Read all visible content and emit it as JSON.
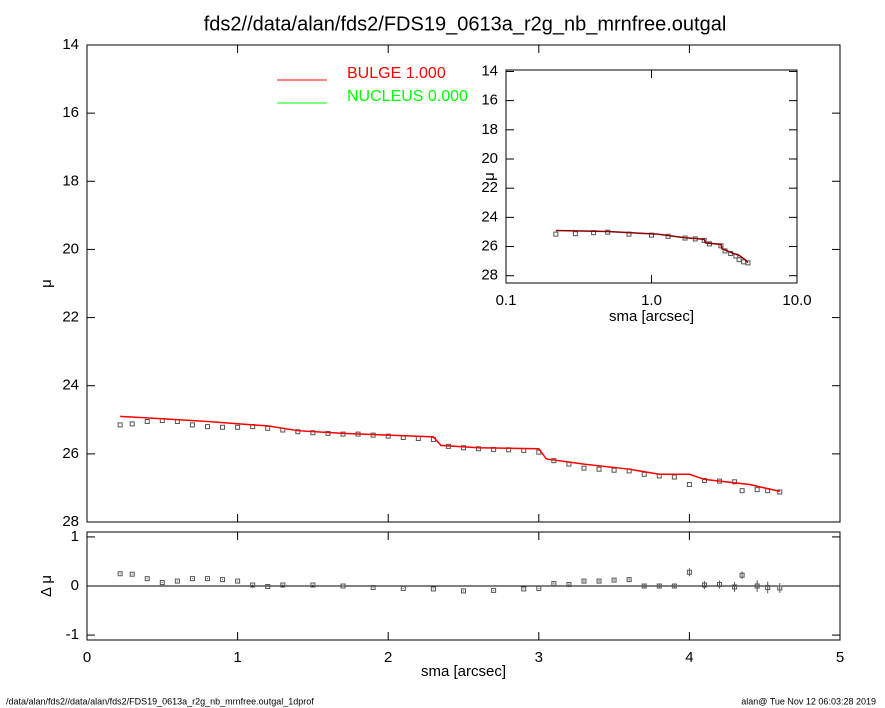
{
  "chart_data": [
    {
      "type": "scatter",
      "title": "fds2//data/alan/fds2/FDS19_0613a_r2g_nb_mrnfree.outgal",
      "ylabel": "μ",
      "xlim": [
        0,
        5
      ],
      "xticks": [
        0,
        1,
        2,
        3,
        4,
        5
      ],
      "show_xtick_labels": false,
      "ylim": [
        28,
        14
      ],
      "yticks": [
        14,
        16,
        18,
        20,
        22,
        24,
        26,
        28
      ],
      "legend": [
        {
          "label": "BULGE  1.000",
          "color": "#ff0000"
        },
        {
          "label": "NUCLEUS  0.000",
          "color": "#00ff00"
        }
      ],
      "series": [
        {
          "mode": "markers",
          "color": "#555555",
          "x": [
            0.22,
            0.3,
            0.4,
            0.5,
            0.6,
            0.7,
            0.8,
            0.9,
            1.0,
            1.1,
            1.2,
            1.3,
            1.4,
            1.5,
            1.6,
            1.7,
            1.8,
            1.9,
            2.0,
            2.1,
            2.2,
            2.3,
            2.4,
            2.5,
            2.6,
            2.7,
            2.8,
            2.9,
            3.0,
            3.1,
            3.2,
            3.3,
            3.4,
            3.5,
            3.6,
            3.7,
            3.8,
            3.9,
            4.0,
            4.1,
            4.2,
            4.3,
            4.35,
            4.45,
            4.52,
            4.6
          ],
          "values": [
            25.15,
            25.12,
            25.05,
            25.02,
            25.05,
            25.15,
            25.2,
            25.22,
            25.22,
            25.2,
            25.25,
            25.3,
            25.35,
            25.38,
            25.4,
            25.42,
            25.42,
            25.45,
            25.48,
            25.52,
            25.55,
            25.58,
            25.78,
            25.82,
            25.85,
            25.87,
            25.88,
            25.9,
            25.95,
            26.2,
            26.3,
            26.42,
            26.45,
            26.48,
            26.5,
            26.6,
            26.65,
            26.68,
            26.9,
            26.78,
            26.8,
            26.82,
            27.08,
            27.05,
            27.08,
            27.12
          ]
        },
        {
          "name": "BULGE  1.000",
          "mode": "line",
          "color": "#ff0000",
          "x": [
            0.22,
            0.5,
            0.8,
            1.1,
            1.2,
            1.4,
            1.7,
            2.0,
            2.3,
            2.35,
            2.6,
            3.0,
            3.05,
            3.3,
            3.6,
            3.8,
            4.0,
            4.1,
            4.4,
            4.6
          ],
          "values": [
            24.9,
            24.97,
            25.05,
            25.15,
            25.18,
            25.32,
            25.4,
            25.45,
            25.5,
            25.75,
            25.82,
            25.85,
            26.15,
            26.3,
            26.45,
            26.6,
            26.6,
            26.75,
            26.9,
            27.1
          ]
        }
      ]
    },
    {
      "type": "scatter",
      "xlabel": "sma [arcsec]",
      "ylabel": "μ",
      "xscale": "log",
      "xlim": [
        0.1,
        10
      ],
      "xticks": [
        0.1,
        {
          "value": 1,
          "label": "1.0"
        },
        {
          "value": 10,
          "label": "10.0"
        }
      ],
      "show_xtick_labels": true,
      "ylim": [
        28.5,
        13.9
      ],
      "yticks": [
        14,
        16,
        18,
        20,
        22,
        24,
        26,
        28
      ],
      "series": [
        {
          "mode": "markers",
          "color": "#555555",
          "x": [
            0.22,
            0.3,
            0.4,
            0.5,
            0.7,
            1.0,
            1.3,
            1.7,
            2.0,
            2.3,
            2.5,
            3.0,
            3.2,
            3.5,
            3.8,
            4.0,
            4.3,
            4.6
          ],
          "values": [
            25.15,
            25.12,
            25.05,
            25.02,
            25.15,
            25.22,
            25.3,
            25.42,
            25.48,
            25.58,
            25.82,
            25.95,
            26.3,
            26.48,
            26.65,
            26.9,
            27.05,
            27.12
          ]
        },
        {
          "mode": "line",
          "color": "#8b0000",
          "x": [
            0.22,
            0.5,
            1.1,
            1.7,
            2.3,
            2.35,
            3.0,
            3.05,
            3.6,
            4.0,
            4.4,
            4.6
          ],
          "values": [
            24.9,
            24.97,
            25.15,
            25.4,
            25.5,
            25.75,
            25.85,
            26.15,
            26.45,
            26.6,
            26.9,
            27.1
          ]
        }
      ]
    },
    {
      "type": "scatter",
      "xlabel": "sma [arcsec]",
      "ylabel": "Δ μ",
      "xlim": [
        0,
        5
      ],
      "xticks": [
        0,
        1,
        2,
        3,
        4,
        5
      ],
      "show_xtick_labels": true,
      "ylim": [
        -1.1,
        1.1
      ],
      "yticks": [
        -1,
        0,
        1
      ],
      "hline": 0,
      "series": [
        {
          "mode": "markers",
          "color": "#555555",
          "x": [
            0.22,
            0.3,
            0.4,
            0.5,
            0.6,
            0.7,
            0.8,
            0.9,
            1.0,
            1.1,
            1.2,
            1.3,
            1.5,
            1.7,
            1.9,
            2.1,
            2.3,
            2.5,
            2.7,
            2.9,
            3.0,
            3.1,
            3.2,
            3.3,
            3.4,
            3.5,
            3.6,
            3.7,
            3.8,
            3.9,
            4.0,
            4.1,
            4.2,
            4.3,
            4.35,
            4.45,
            4.52,
            4.6
          ],
          "values": [
            0.25,
            0.24,
            0.15,
            0.07,
            0.1,
            0.15,
            0.15,
            0.13,
            0.1,
            0.02,
            -0.01,
            0.02,
            0.02,
            0.0,
            -0.03,
            -0.05,
            -0.06,
            -0.1,
            -0.09,
            -0.06,
            -0.05,
            0.05,
            0.03,
            0.1,
            0.1,
            0.12,
            0.13,
            0.0,
            0.0,
            0.0,
            0.28,
            0.02,
            0.03,
            -0.02,
            0.22,
            0.0,
            -0.03,
            -0.04
          ],
          "errors": [
            0.01,
            0.01,
            0.01,
            0.01,
            0.01,
            0.01,
            0.01,
            0.01,
            0.01,
            0.01,
            0.01,
            0.01,
            0.01,
            0.01,
            0.01,
            0.01,
            0.01,
            0.01,
            0.01,
            0.01,
            0.01,
            0.02,
            0.02,
            0.02,
            0.02,
            0.02,
            0.02,
            0.03,
            0.03,
            0.03,
            0.08,
            0.08,
            0.08,
            0.1,
            0.08,
            0.12,
            0.12,
            0.1
          ]
        }
      ]
    }
  ],
  "footer": {
    "left": "/data/alan/fds2//data/alan/fds2/FDS19_0613a_r2g_nb_mrnfree.outgal_1dprof",
    "right": "alan@  Tue Nov 12 06:03:28 2019"
  }
}
